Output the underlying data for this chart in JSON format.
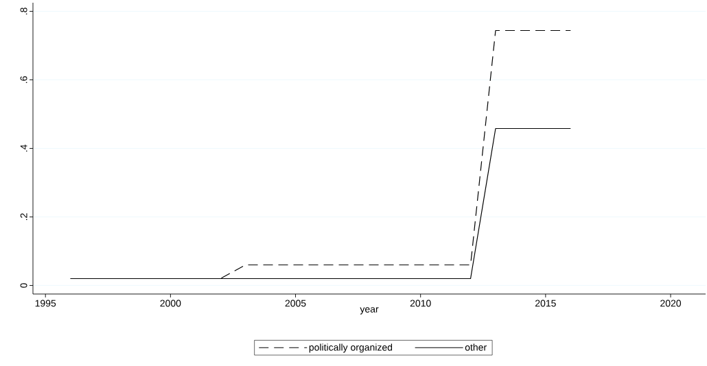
{
  "chart_data": {
    "type": "line",
    "xlabel": "year",
    "xlim": [
      1994.5,
      2021.4
    ],
    "ylim": [
      -0.025,
      0.825
    ],
    "xticks": [
      1995,
      2000,
      2005,
      2010,
      2015,
      2020
    ],
    "yticks": [
      {
        "value": 0,
        "label": "0"
      },
      {
        "value": 0.2,
        "label": ".2"
      },
      {
        "value": 0.4,
        "label": ".4"
      },
      {
        "value": 0.6,
        "label": ".6"
      },
      {
        "value": 0.8,
        "label": ".8"
      }
    ],
    "grid": "y",
    "legend": "bottom",
    "series": [
      {
        "name": "politically organized",
        "color": "#000000",
        "line_style": "dashed",
        "x": [
          1996,
          2002,
          2003,
          2012,
          2013,
          2016
        ],
        "values": [
          0.02,
          0.02,
          0.06,
          0.06,
          0.744,
          0.744
        ]
      },
      {
        "name": "other",
        "color": "#000000",
        "line_style": "solid",
        "x": [
          1996,
          2012,
          2013,
          2016
        ],
        "values": [
          0.02,
          0.02,
          0.458,
          0.458
        ]
      }
    ]
  }
}
